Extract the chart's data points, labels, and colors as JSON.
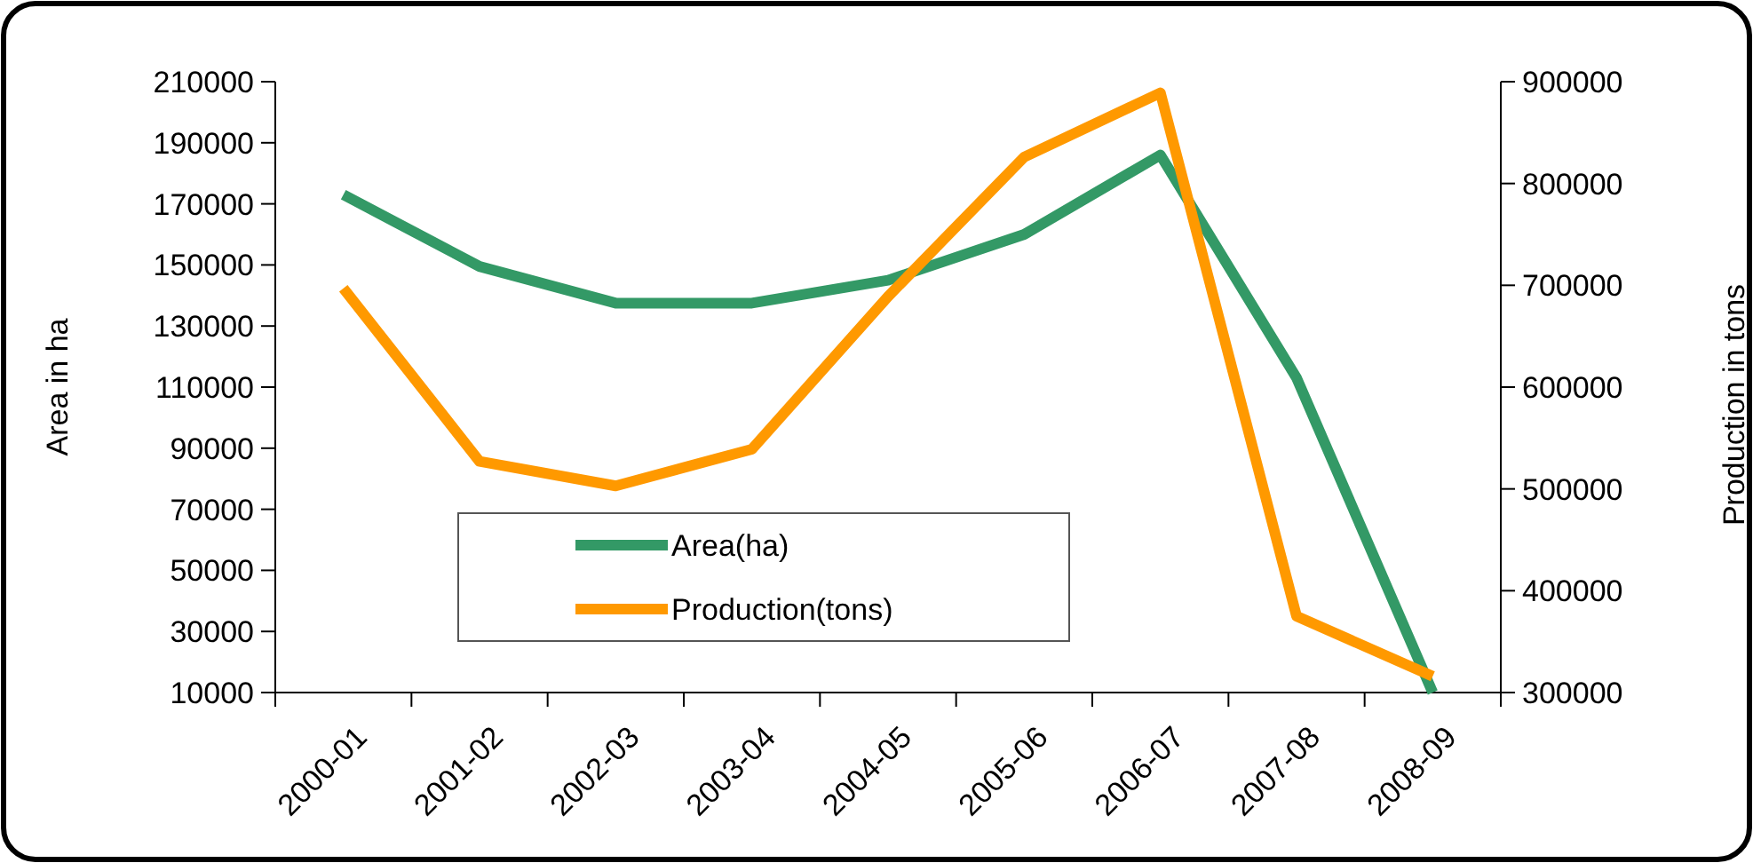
{
  "chart_data": {
    "type": "line",
    "xlabel": null,
    "ylabel": "Area in ha",
    "y2label": "Production in tons",
    "categories": [
      "2000-01",
      "2001-02",
      "2002-03",
      "2003-04",
      "2004-05",
      "2005-06",
      "2006-07",
      "2007-08",
      "2008-09"
    ],
    "series": [
      {
        "name": "Area(ha)",
        "color": "#339966",
        "values": [
          173000,
          149500,
          137500,
          137500,
          145000,
          160000,
          186000,
          113000,
          10000
        ]
      },
      {
        "name": "Production(tons)",
        "color": "#ff9900",
        "axis": "y2",
        "values": [
          697000,
          527000,
          503000,
          539000,
          689000,
          826000,
          889000,
          375000,
          316000
        ]
      }
    ],
    "ylim": [
      10000,
      210000
    ],
    "yticks": [
      10000,
      30000,
      50000,
      70000,
      90000,
      110000,
      130000,
      150000,
      170000,
      190000,
      210000
    ],
    "y2lim": [
      300000,
      900000
    ],
    "y2ticks": [
      300000,
      400000,
      500000,
      600000,
      700000,
      800000,
      900000
    ],
    "grid": false,
    "legend": "bottom",
    "line_style": "solid"
  }
}
